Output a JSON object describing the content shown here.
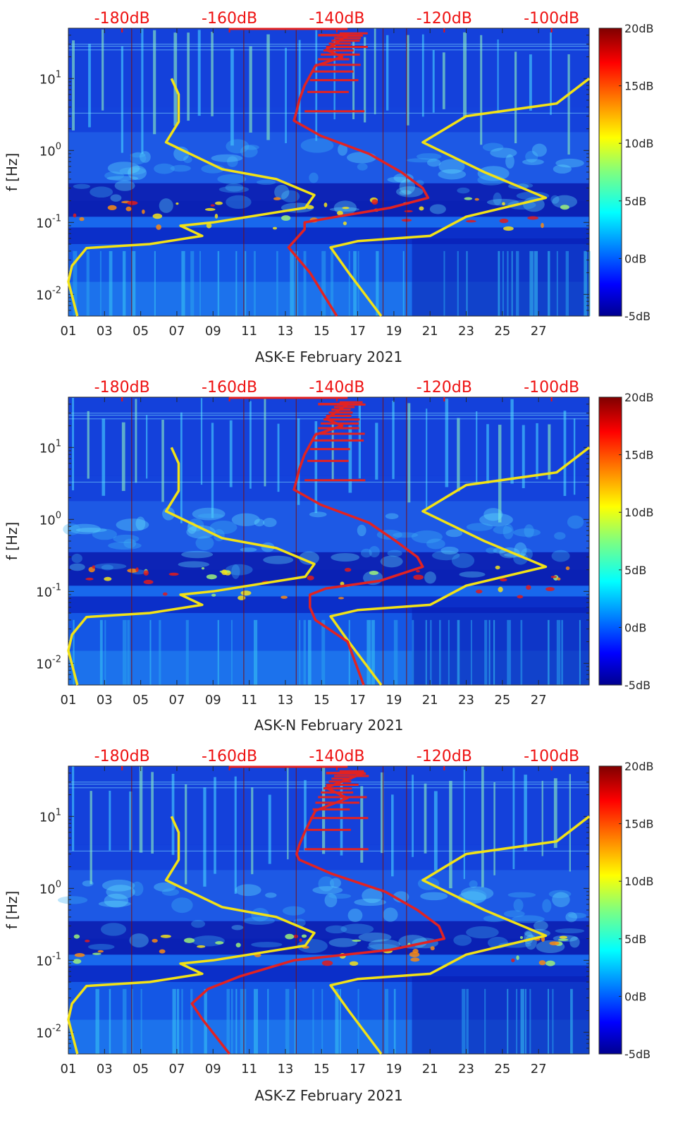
{
  "chart_data": [
    {
      "type": "heatmap",
      "title": "",
      "xlabel": "ASK-E February 2021",
      "ylabel": "f [Hz]",
      "x_ticks": [
        "01",
        "03",
        "05",
        "07",
        "09",
        "11",
        "13",
        "15",
        "17",
        "19",
        "21",
        "23",
        "25",
        "27"
      ],
      "y_ticks": [
        "10^-2",
        "10^-1",
        "10^0",
        "10^1"
      ],
      "y_scale": "log",
      "ylim": [
        0.005,
        50
      ],
      "xlim": [
        1,
        29.8
      ],
      "top_ticks": [
        "-180dB",
        "-160dB",
        "-140dB",
        "-120dB",
        "-100dB"
      ],
      "top_range": [
        -190,
        -93
      ],
      "colorbar": {
        "ticks": [
          "20dB",
          "15dB",
          "10dB",
          "5dB",
          "0dB",
          "-5dB"
        ],
        "range": [
          -5,
          20
        ]
      },
      "series": [
        {
          "name": "",
          "color": "#f2e216",
          "axis": "day",
          "points": [
            [
              6.7,
              10
            ],
            [
              7.1,
              6
            ],
            [
              7.1,
              2.5
            ],
            [
              6.4,
              1.3
            ],
            [
              9.5,
              0.55
            ],
            [
              12.5,
              0.4
            ],
            [
              14.6,
              0.24
            ],
            [
              14.1,
              0.16
            ],
            [
              9,
              0.1
            ],
            [
              7.2,
              0.09
            ],
            [
              8.4,
              0.065
            ],
            [
              5.5,
              0.05
            ],
            [
              2,
              0.044
            ],
            [
              1.2,
              0.025
            ],
            [
              1,
              0.015
            ],
            [
              1.5,
              0.005
            ],
            [
              29.8,
              10
            ],
            [
              28,
              4.5
            ],
            [
              23,
              3
            ],
            [
              20.6,
              1.3
            ],
            [
              24,
              0.5
            ],
            [
              27.4,
              0.22
            ],
            [
              23,
              0.12
            ],
            [
              21,
              0.065
            ],
            [
              17,
              0.055
            ],
            [
              15.5,
              0.045
            ],
            [
              16.5,
              0.02
            ],
            [
              18.3,
              0.005
            ]
          ]
        },
        {
          "name": "",
          "color": "#e22222",
          "axis": "dB",
          "points": [
            [
              -143.5,
              40
            ],
            [
              -138,
              40
            ],
            [
              -142,
              25
            ],
            [
              -139,
              20
            ],
            [
              -144,
              15
            ],
            [
              -146,
              8
            ],
            [
              -147,
              5
            ],
            [
              -147.5,
              3.5
            ],
            [
              -148,
              2.6
            ],
            [
              -143,
              1.6
            ],
            [
              -134,
              0.9
            ],
            [
              -128,
              0.5
            ],
            [
              -124,
              0.3
            ],
            [
              -123,
              0.22
            ],
            [
              -130,
              0.16
            ],
            [
              -140,
              0.12
            ],
            [
              -146,
              0.1
            ],
            [
              -146,
              0.08
            ],
            [
              -149,
              0.045
            ],
            [
              -145,
              0.02
            ],
            [
              -140,
              0.005
            ]
          ]
        }
      ]
    },
    {
      "type": "heatmap",
      "title": "",
      "xlabel": "ASK-N February 2021",
      "ylabel": "f [Hz]",
      "x_ticks": [
        "01",
        "03",
        "05",
        "07",
        "09",
        "11",
        "13",
        "15",
        "17",
        "19",
        "21",
        "23",
        "25",
        "27"
      ],
      "y_ticks": [
        "10^-2",
        "10^-1",
        "10^0",
        "10^1"
      ],
      "y_scale": "log",
      "ylim": [
        0.005,
        50
      ],
      "xlim": [
        1,
        29.8
      ],
      "top_ticks": [
        "-180dB",
        "-160dB",
        "-140dB",
        "-120dB",
        "-100dB"
      ],
      "top_range": [
        -190,
        -93
      ],
      "colorbar": {
        "ticks": [
          "20dB",
          "15dB",
          "10dB",
          "5dB",
          "0dB",
          "-5dB"
        ],
        "range": [
          -5,
          20
        ]
      },
      "series": [
        {
          "name": "",
          "color": "#f2e216",
          "axis": "day",
          "points": [
            [
              6.7,
              10
            ],
            [
              7.1,
              6
            ],
            [
              7.1,
              2.5
            ],
            [
              6.4,
              1.3
            ],
            [
              9.5,
              0.55
            ],
            [
              12.5,
              0.4
            ],
            [
              14.6,
              0.24
            ],
            [
              14.1,
              0.16
            ],
            [
              9,
              0.1
            ],
            [
              7.2,
              0.09
            ],
            [
              8.4,
              0.065
            ],
            [
              5.5,
              0.05
            ],
            [
              2,
              0.044
            ],
            [
              1.2,
              0.025
            ],
            [
              1,
              0.015
            ],
            [
              1.5,
              0.005
            ],
            [
              29.8,
              10
            ],
            [
              28,
              4.5
            ],
            [
              23,
              3
            ],
            [
              20.6,
              1.3
            ],
            [
              24,
              0.5
            ],
            [
              27.4,
              0.22
            ],
            [
              23,
              0.12
            ],
            [
              21,
              0.065
            ],
            [
              17,
              0.055
            ],
            [
              15.5,
              0.045
            ],
            [
              16.5,
              0.02
            ],
            [
              18.3,
              0.005
            ]
          ]
        },
        {
          "name": "",
          "color": "#e22222",
          "axis": "dB",
          "points": [
            [
              -143.5,
              40
            ],
            [
              -138,
              40
            ],
            [
              -142,
              25
            ],
            [
              -139,
              20
            ],
            [
              -144,
              15
            ],
            [
              -146,
              8
            ],
            [
              -147,
              5
            ],
            [
              -147.5,
              3.5
            ],
            [
              -148,
              2.6
            ],
            [
              -143,
              1.6
            ],
            [
              -134,
              0.9
            ],
            [
              -129,
              0.5
            ],
            [
              -125,
              0.3
            ],
            [
              -124,
              0.22
            ],
            [
              -132,
              0.14
            ],
            [
              -142,
              0.11
            ],
            [
              -145,
              0.09
            ],
            [
              -145,
              0.06
            ],
            [
              -144,
              0.04
            ],
            [
              -138,
              0.02
            ],
            [
              -135,
              0.005
            ]
          ]
        }
      ]
    },
    {
      "type": "heatmap",
      "title": "",
      "xlabel": "ASK-Z February 2021",
      "ylabel": "f [Hz]",
      "x_ticks": [
        "01",
        "03",
        "05",
        "07",
        "09",
        "11",
        "13",
        "15",
        "17",
        "19",
        "21",
        "23",
        "25",
        "27"
      ],
      "y_ticks": [
        "10^-2",
        "10^-1",
        "10^0",
        "10^1"
      ],
      "y_scale": "log",
      "ylim": [
        0.005,
        50
      ],
      "xlim": [
        1,
        29.8
      ],
      "top_ticks": [
        "-180dB",
        "-160dB",
        "-140dB",
        "-120dB",
        "-100dB"
      ],
      "top_range": [
        -190,
        -93
      ],
      "colorbar": {
        "ticks": [
          "20dB",
          "15dB",
          "10dB",
          "5dB",
          "0dB",
          "-5dB"
        ],
        "range": [
          -5,
          20
        ]
      },
      "series": [
        {
          "name": "",
          "color": "#f2e216",
          "axis": "day",
          "points": [
            [
              6.7,
              10
            ],
            [
              7.1,
              6
            ],
            [
              7.1,
              2.5
            ],
            [
              6.4,
              1.3
            ],
            [
              9.5,
              0.55
            ],
            [
              12.5,
              0.4
            ],
            [
              14.6,
              0.24
            ],
            [
              14.1,
              0.16
            ],
            [
              9,
              0.1
            ],
            [
              7.2,
              0.09
            ],
            [
              8.4,
              0.065
            ],
            [
              5.5,
              0.05
            ],
            [
              2,
              0.044
            ],
            [
              1.2,
              0.025
            ],
            [
              1,
              0.015
            ],
            [
              1.5,
              0.005
            ],
            [
              29.8,
              10
            ],
            [
              28,
              4.5
            ],
            [
              23,
              3
            ],
            [
              20.6,
              1.3
            ],
            [
              24,
              0.5
            ],
            [
              27.4,
              0.22
            ],
            [
              23,
              0.12
            ],
            [
              21,
              0.065
            ],
            [
              17,
              0.055
            ],
            [
              15.5,
              0.045
            ],
            [
              16.5,
              0.02
            ],
            [
              18.3,
              0.005
            ]
          ]
        },
        {
          "name": "",
          "color": "#e22222",
          "axis": "dB",
          "points": [
            [
              -142,
              40
            ],
            [
              -135,
              40
            ],
            [
              -142,
              25
            ],
            [
              -138,
              18
            ],
            [
              -144,
              12
            ],
            [
              -146,
              6
            ],
            [
              -147,
              4
            ],
            [
              -147.5,
              3
            ],
            [
              -147,
              2.5
            ],
            [
              -141,
              1.6
            ],
            [
              -131,
              0.9
            ],
            [
              -125,
              0.5
            ],
            [
              -121,
              0.3
            ],
            [
              -120,
              0.2
            ],
            [
              -130,
              0.14
            ],
            [
              -148,
              0.1
            ],
            [
              -158,
              0.06
            ],
            [
              -164,
              0.04
            ],
            [
              -167,
              0.025
            ],
            [
              -165,
              0.015
            ],
            [
              -160,
              0.005
            ]
          ]
        }
      ]
    }
  ]
}
